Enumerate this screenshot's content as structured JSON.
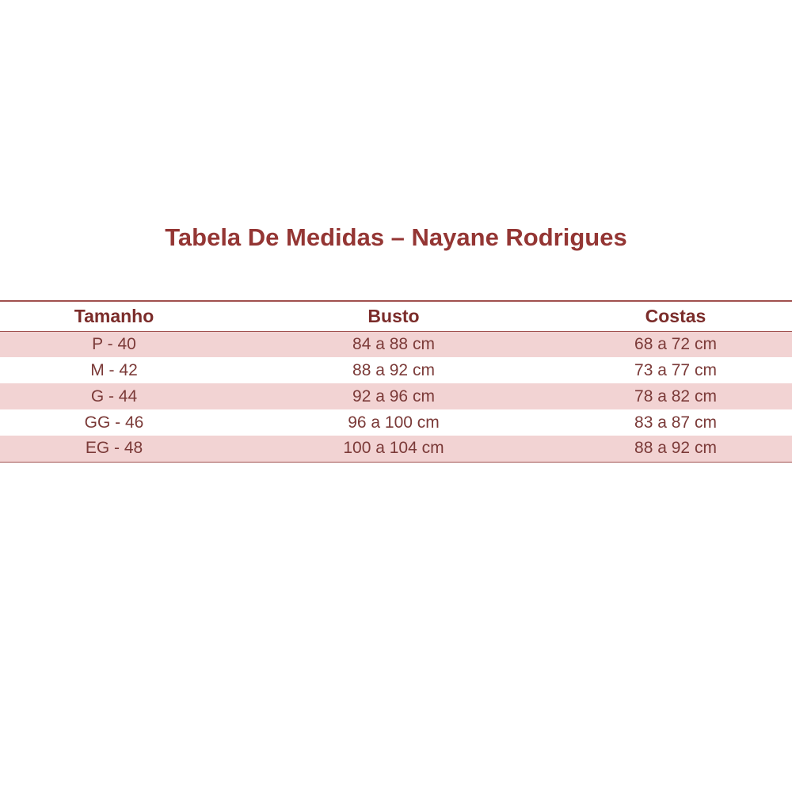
{
  "title": "Tabela De Medidas – Nayane Rodrigues",
  "colors": {
    "title": "#943634",
    "row_fill": "#f2d3d3",
    "rule": "#a0504e"
  },
  "table": {
    "headers": [
      "Tamanho",
      "Busto",
      "Costas"
    ],
    "rows": [
      [
        "P - 40",
        "84 a 88 cm",
        "68 a 72 cm"
      ],
      [
        "M - 42",
        "88 a 92 cm",
        "73 a 77 cm"
      ],
      [
        "G - 44",
        "92 a 96 cm",
        "78 a 82 cm"
      ],
      [
        "GG - 46",
        "96 a 100 cm",
        "83 a 87 cm"
      ],
      [
        "EG - 48",
        "100 a 104 cm",
        "88 a 92 cm"
      ]
    ]
  }
}
